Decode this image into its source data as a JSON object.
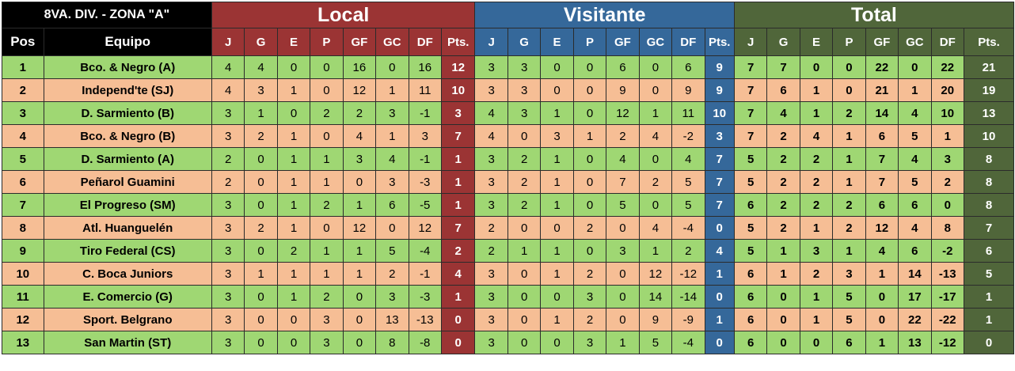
{
  "title": "8VA. DIV. - ZONA \"A\"",
  "sections": {
    "local": "Local",
    "visitante": "Visitante",
    "total": "Total"
  },
  "headers": {
    "pos": "Pos",
    "equipo": "Equipo",
    "stats": [
      "J",
      "G",
      "E",
      "P",
      "GF",
      "GC",
      "DF",
      "Pts."
    ]
  },
  "colors": {
    "local": "#9b3434",
    "visitante": "#35689a",
    "total": "#50663a",
    "row_green": "#9fd773",
    "row_peach": "#f6be95"
  },
  "rows": [
    {
      "pos": "1",
      "team": "Bco. & Negro (A)",
      "local": [
        "4",
        "4",
        "0",
        "0",
        "16",
        "0",
        "16",
        "12"
      ],
      "visitante": [
        "3",
        "3",
        "0",
        "0",
        "6",
        "0",
        "6",
        "9"
      ],
      "total": [
        "7",
        "7",
        "0",
        "0",
        "22",
        "0",
        "22",
        "21"
      ]
    },
    {
      "pos": "2",
      "team": "Independ'te (SJ)",
      "local": [
        "4",
        "3",
        "1",
        "0",
        "12",
        "1",
        "11",
        "10"
      ],
      "visitante": [
        "3",
        "3",
        "0",
        "0",
        "9",
        "0",
        "9",
        "9"
      ],
      "total": [
        "7",
        "6",
        "1",
        "0",
        "21",
        "1",
        "20",
        "19"
      ]
    },
    {
      "pos": "3",
      "team": "D. Sarmiento (B)",
      "local": [
        "3",
        "1",
        "0",
        "2",
        "2",
        "3",
        "-1",
        "3"
      ],
      "visitante": [
        "4",
        "3",
        "1",
        "0",
        "12",
        "1",
        "11",
        "10"
      ],
      "total": [
        "7",
        "4",
        "1",
        "2",
        "14",
        "4",
        "10",
        "13"
      ]
    },
    {
      "pos": "4",
      "team": "Bco. & Negro (B)",
      "local": [
        "3",
        "2",
        "1",
        "0",
        "4",
        "1",
        "3",
        "7"
      ],
      "visitante": [
        "4",
        "0",
        "3",
        "1",
        "2",
        "4",
        "-2",
        "3"
      ],
      "total": [
        "7",
        "2",
        "4",
        "1",
        "6",
        "5",
        "1",
        "10"
      ]
    },
    {
      "pos": "5",
      "team": "D. Sarmiento (A)",
      "local": [
        "2",
        "0",
        "1",
        "1",
        "3",
        "4",
        "-1",
        "1"
      ],
      "visitante": [
        "3",
        "2",
        "1",
        "0",
        "4",
        "0",
        "4",
        "7"
      ],
      "total": [
        "5",
        "2",
        "2",
        "1",
        "7",
        "4",
        "3",
        "8"
      ]
    },
    {
      "pos": "6",
      "team": "Peñarol Guamini",
      "local": [
        "2",
        "0",
        "1",
        "1",
        "0",
        "3",
        "-3",
        "1"
      ],
      "visitante": [
        "3",
        "2",
        "1",
        "0",
        "7",
        "2",
        "5",
        "7"
      ],
      "total": [
        "5",
        "2",
        "2",
        "1",
        "7",
        "5",
        "2",
        "8"
      ]
    },
    {
      "pos": "7",
      "team": "El Progreso (SM)",
      "local": [
        "3",
        "0",
        "1",
        "2",
        "1",
        "6",
        "-5",
        "1"
      ],
      "visitante": [
        "3",
        "2",
        "1",
        "0",
        "5",
        "0",
        "5",
        "7"
      ],
      "total": [
        "6",
        "2",
        "2",
        "2",
        "6",
        "6",
        "0",
        "8"
      ]
    },
    {
      "pos": "8",
      "team": "Atl. Huanguelén",
      "local": [
        "3",
        "2",
        "1",
        "0",
        "12",
        "0",
        "12",
        "7"
      ],
      "visitante": [
        "2",
        "0",
        "0",
        "2",
        "0",
        "4",
        "-4",
        "0"
      ],
      "total": [
        "5",
        "2",
        "1",
        "2",
        "12",
        "4",
        "8",
        "7"
      ]
    },
    {
      "pos": "9",
      "team": "Tiro Federal (CS)",
      "local": [
        "3",
        "0",
        "2",
        "1",
        "1",
        "5",
        "-4",
        "2"
      ],
      "visitante": [
        "2",
        "1",
        "1",
        "0",
        "3",
        "1",
        "2",
        "4"
      ],
      "total": [
        "5",
        "1",
        "3",
        "1",
        "4",
        "6",
        "-2",
        "6"
      ]
    },
    {
      "pos": "10",
      "team": "C. Boca Juniors",
      "local": [
        "3",
        "1",
        "1",
        "1",
        "1",
        "2",
        "-1",
        "4"
      ],
      "visitante": [
        "3",
        "0",
        "1",
        "2",
        "0",
        "12",
        "-12",
        "1"
      ],
      "total": [
        "6",
        "1",
        "2",
        "3",
        "1",
        "14",
        "-13",
        "5"
      ]
    },
    {
      "pos": "11",
      "team": "E. Comercio (G)",
      "local": [
        "3",
        "0",
        "1",
        "2",
        "0",
        "3",
        "-3",
        "1"
      ],
      "visitante": [
        "3",
        "0",
        "0",
        "3",
        "0",
        "14",
        "-14",
        "0"
      ],
      "total": [
        "6",
        "0",
        "1",
        "5",
        "0",
        "17",
        "-17",
        "1"
      ]
    },
    {
      "pos": "12",
      "team": "Sport. Belgrano",
      "local": [
        "3",
        "0",
        "0",
        "3",
        "0",
        "13",
        "-13",
        "0"
      ],
      "visitante": [
        "3",
        "0",
        "1",
        "2",
        "0",
        "9",
        "-9",
        "1"
      ],
      "total": [
        "6",
        "0",
        "1",
        "5",
        "0",
        "22",
        "-22",
        "1"
      ]
    },
    {
      "pos": "13",
      "team": "San Martin (ST)",
      "local": [
        "3",
        "0",
        "0",
        "3",
        "0",
        "8",
        "-8",
        "0"
      ],
      "visitante": [
        "3",
        "0",
        "0",
        "3",
        "1",
        "5",
        "-4",
        "0"
      ],
      "total": [
        "6",
        "0",
        "0",
        "6",
        "1",
        "13",
        "-12",
        "0"
      ]
    }
  ]
}
